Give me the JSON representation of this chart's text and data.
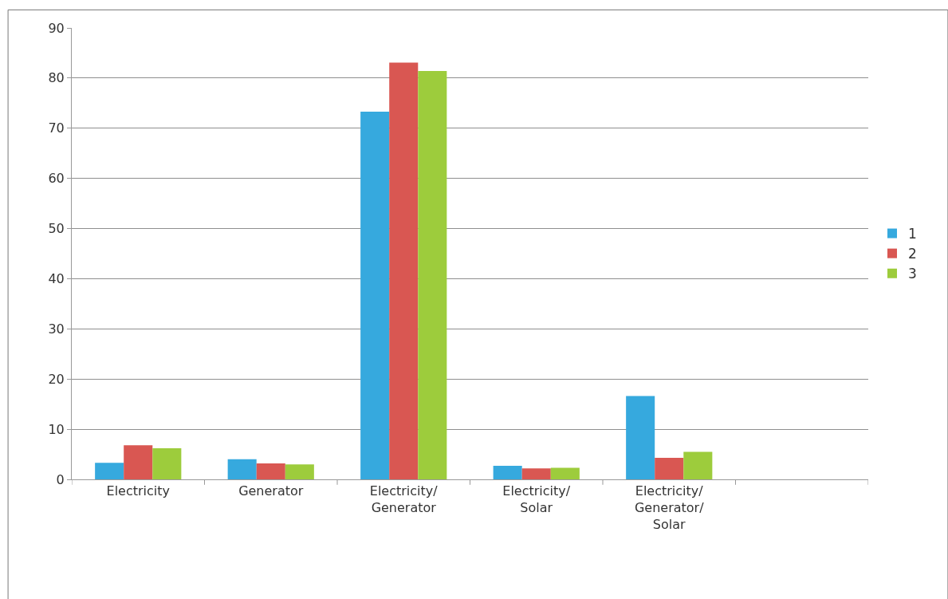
{
  "chart_data": {
    "type": "bar",
    "categories": [
      "Electricity",
      "Generator",
      "Electricity/\nGenerator",
      "Electricity/\nSolar",
      "Electricity/\nGenerator/\nSolar",
      null
    ],
    "series": [
      {
        "name": "1",
        "color": "#36a9de",
        "values": [
          3.3,
          4.0,
          73.3,
          2.7,
          16.6,
          null
        ]
      },
      {
        "name": "2",
        "color": "#d95752",
        "values": [
          6.8,
          3.2,
          83.1,
          2.2,
          4.3,
          null
        ]
      },
      {
        "name": "3",
        "color": "#9dcc3c",
        "values": [
          6.2,
          3.0,
          81.4,
          2.3,
          5.5,
          null
        ]
      }
    ],
    "ylim": [
      0,
      90
    ],
    "yticks": [
      0,
      10,
      20,
      30,
      40,
      50,
      60,
      70,
      80,
      90
    ],
    "grid": "y",
    "legend": "right"
  }
}
